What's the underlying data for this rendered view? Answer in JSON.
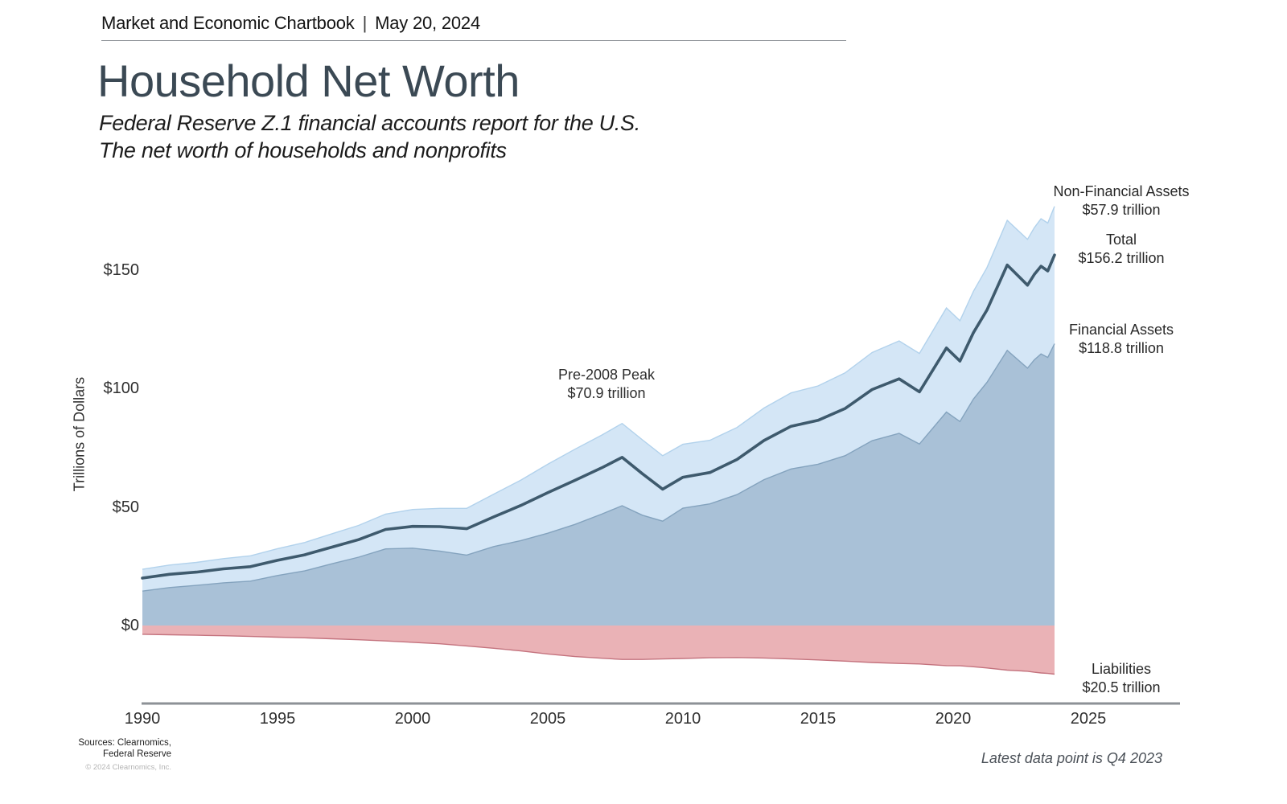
{
  "header": {
    "title": "Market and Economic Chartbook",
    "separator": "|",
    "date": "May 20, 2024"
  },
  "page": {
    "title": "Household Net Worth",
    "subtitle_line1": "Federal Reserve Z.1 financial accounts report for the U.S.",
    "subtitle_line2": "The net worth of households and nonprofits"
  },
  "footer": {
    "sources_line1": "Sources: Clearnomics,",
    "sources_line2": "Federal Reserve",
    "copyright": "© 2024 Clearnomics, Inc.",
    "note": "Latest data point is Q4 2023"
  },
  "chart_data": {
    "type": "area",
    "title": "Household Net Worth",
    "ylabel": "Trillions of Dollars",
    "axis_color": "#8d9196",
    "ylim": [
      -25,
      185
    ],
    "xlim": [
      1990,
      2028.4
    ],
    "y_ticks": [
      {
        "value": 150,
        "label": "$150"
      },
      {
        "value": 100,
        "label": "$100"
      },
      {
        "value": 50,
        "label": "$50"
      },
      {
        "value": 0,
        "label": "$0"
      }
    ],
    "x_ticks": [
      {
        "value": 1990,
        "label": "1990"
      },
      {
        "value": 1995,
        "label": "1995"
      },
      {
        "value": 2000,
        "label": "2000"
      },
      {
        "value": 2005,
        "label": "2005"
      },
      {
        "value": 2010,
        "label": "2010"
      },
      {
        "value": 2015,
        "label": "2015"
      },
      {
        "value": 2020,
        "label": "2020"
      },
      {
        "value": 2025,
        "label": "2025"
      }
    ],
    "annotation": {
      "line1": "Pre-2008 Peak",
      "line2": "$70.9 trillion",
      "anchor_year": 2007.75,
      "anchor_value": 70.9
    },
    "end_labels": [
      {
        "series": "Non-Financial Assets",
        "label": "Non-Financial Assets",
        "value": "$57.9 trillion"
      },
      {
        "series": "Total",
        "label": "Total",
        "value": "$156.2 trillion"
      },
      {
        "series": "Financial Assets",
        "label": "Financial Assets",
        "value": "$118.8 trillion"
      },
      {
        "series": "Liabilities",
        "label": "Liabilities",
        "value": "$20.5 trillion"
      }
    ],
    "x": [
      1990,
      1991,
      1992,
      1993,
      1994,
      1995,
      1996,
      1997,
      1998,
      1999,
      2000,
      2001,
      2002,
      2003,
      2004,
      2005,
      2006,
      2007,
      2007.75,
      2008.5,
      2009.25,
      2010,
      2011,
      2012,
      2013,
      2014,
      2015,
      2016,
      2017,
      2018,
      2018.75,
      2019.75,
      2020.25,
      2020.75,
      2021.25,
      2022,
      2022.75,
      2023,
      2023.25,
      2023.5,
      2023.75
    ],
    "series": [
      {
        "name": "Total",
        "type": "line",
        "color": "#3e5a6d",
        "values": [
          20.0,
          21.6,
          22.5,
          23.9,
          24.8,
          27.5,
          29.8,
          33.0,
          36.2,
          40.5,
          41.8,
          41.7,
          40.8,
          45.8,
          50.6,
          56.0,
          61.2,
          66.5,
          70.9,
          64.0,
          57.5,
          62.5,
          64.5,
          70.0,
          78.0,
          84.0,
          86.5,
          91.5,
          99.5,
          104.0,
          98.5,
          117.0,
          111.5,
          123.5,
          133.0,
          152.0,
          143.5,
          148.0,
          151.5,
          149.5,
          156.2
        ]
      },
      {
        "name": "Financial Assets",
        "type": "area",
        "color": "#a9c1d7",
        "edge_color": "#84a3be",
        "values": [
          14.5,
          16.0,
          16.9,
          18.0,
          18.7,
          21.1,
          23.0,
          26.0,
          28.8,
          32.3,
          32.6,
          31.4,
          29.7,
          33.3,
          35.8,
          38.9,
          42.6,
          47.0,
          50.5,
          46.5,
          44.0,
          49.5,
          51.3,
          55.2,
          61.5,
          66.0,
          68.0,
          71.6,
          77.9,
          81.0,
          76.5,
          90.0,
          86.0,
          95.5,
          102.5,
          116.0,
          108.5,
          112.0,
          114.5,
          113.0,
          118.8
        ]
      },
      {
        "name": "Non-Financial Assets",
        "type": "area",
        "stacked_on": "Financial Assets",
        "color": "#d4e6f6",
        "edge_color": "#b2d2ec",
        "values": [
          9.2,
          9.5,
          9.7,
          10.2,
          10.7,
          11.3,
          12.0,
          12.6,
          13.4,
          14.7,
          16.3,
          18.0,
          19.7,
          22.1,
          25.5,
          29.1,
          31.7,
          33.3,
          34.7,
          31.8,
          27.6,
          26.9,
          26.8,
          28.3,
          30.2,
          32.1,
          33.0,
          34.9,
          37.2,
          39.0,
          38.2,
          43.9,
          42.5,
          45.4,
          48.4,
          54.8,
          54.3,
          55.7,
          57.0,
          56.7,
          57.9
        ]
      },
      {
        "name": "Liabilities",
        "type": "area",
        "sign": "negative",
        "color": "#eab2b6",
        "edge_color": "#c4737e",
        "values": [
          3.7,
          3.9,
          4.1,
          4.3,
          4.6,
          4.9,
          5.2,
          5.6,
          6.0,
          6.5,
          7.1,
          7.7,
          8.6,
          9.6,
          10.7,
          12.0,
          13.1,
          13.8,
          14.3,
          14.3,
          14.1,
          13.9,
          13.6,
          13.5,
          13.7,
          14.1,
          14.5,
          15.0,
          15.6,
          16.0,
          16.2,
          16.9,
          17.0,
          17.4,
          17.9,
          18.8,
          19.3,
          19.7,
          20.0,
          20.2,
          20.5
        ]
      }
    ]
  }
}
